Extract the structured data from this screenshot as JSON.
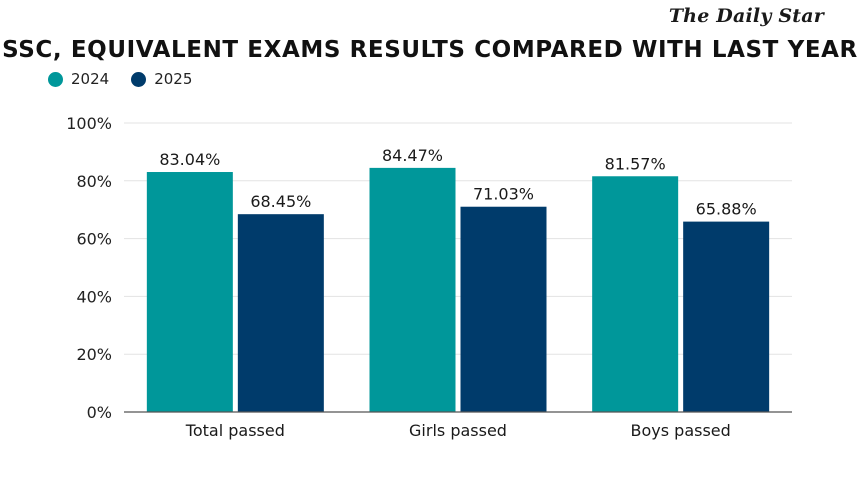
{
  "brand": "The Daily Star",
  "chart_data": {
    "type": "bar",
    "title": "SSC, EQUIVALENT EXAMS RESULTS COMPARED WITH LAST YEAR",
    "categories": [
      "Total passed",
      "Girls passed",
      "Boys passed"
    ],
    "series": [
      {
        "name": "2024",
        "values": [
          83.04,
          84.47,
          81.57
        ],
        "labels": [
          "83.04%",
          "84.47%",
          "81.57%"
        ],
        "color": "#00979a"
      },
      {
        "name": "2025",
        "values": [
          68.45,
          71.03,
          65.88
        ],
        "labels": [
          "68.45%",
          "71.03%",
          "65.88%"
        ],
        "color": "#003b6b"
      }
    ],
    "ylim": [
      0,
      100
    ],
    "yticks": [
      0,
      20,
      40,
      60,
      80,
      100
    ],
    "ytick_labels": [
      "0%",
      "20%",
      "40%",
      "60%",
      "80%",
      "100%"
    ],
    "xlabel": "",
    "ylabel": "",
    "grid": true,
    "legend": "top-left",
    "grid_color": "#e3e3e3",
    "axis_color": "#555555"
  }
}
